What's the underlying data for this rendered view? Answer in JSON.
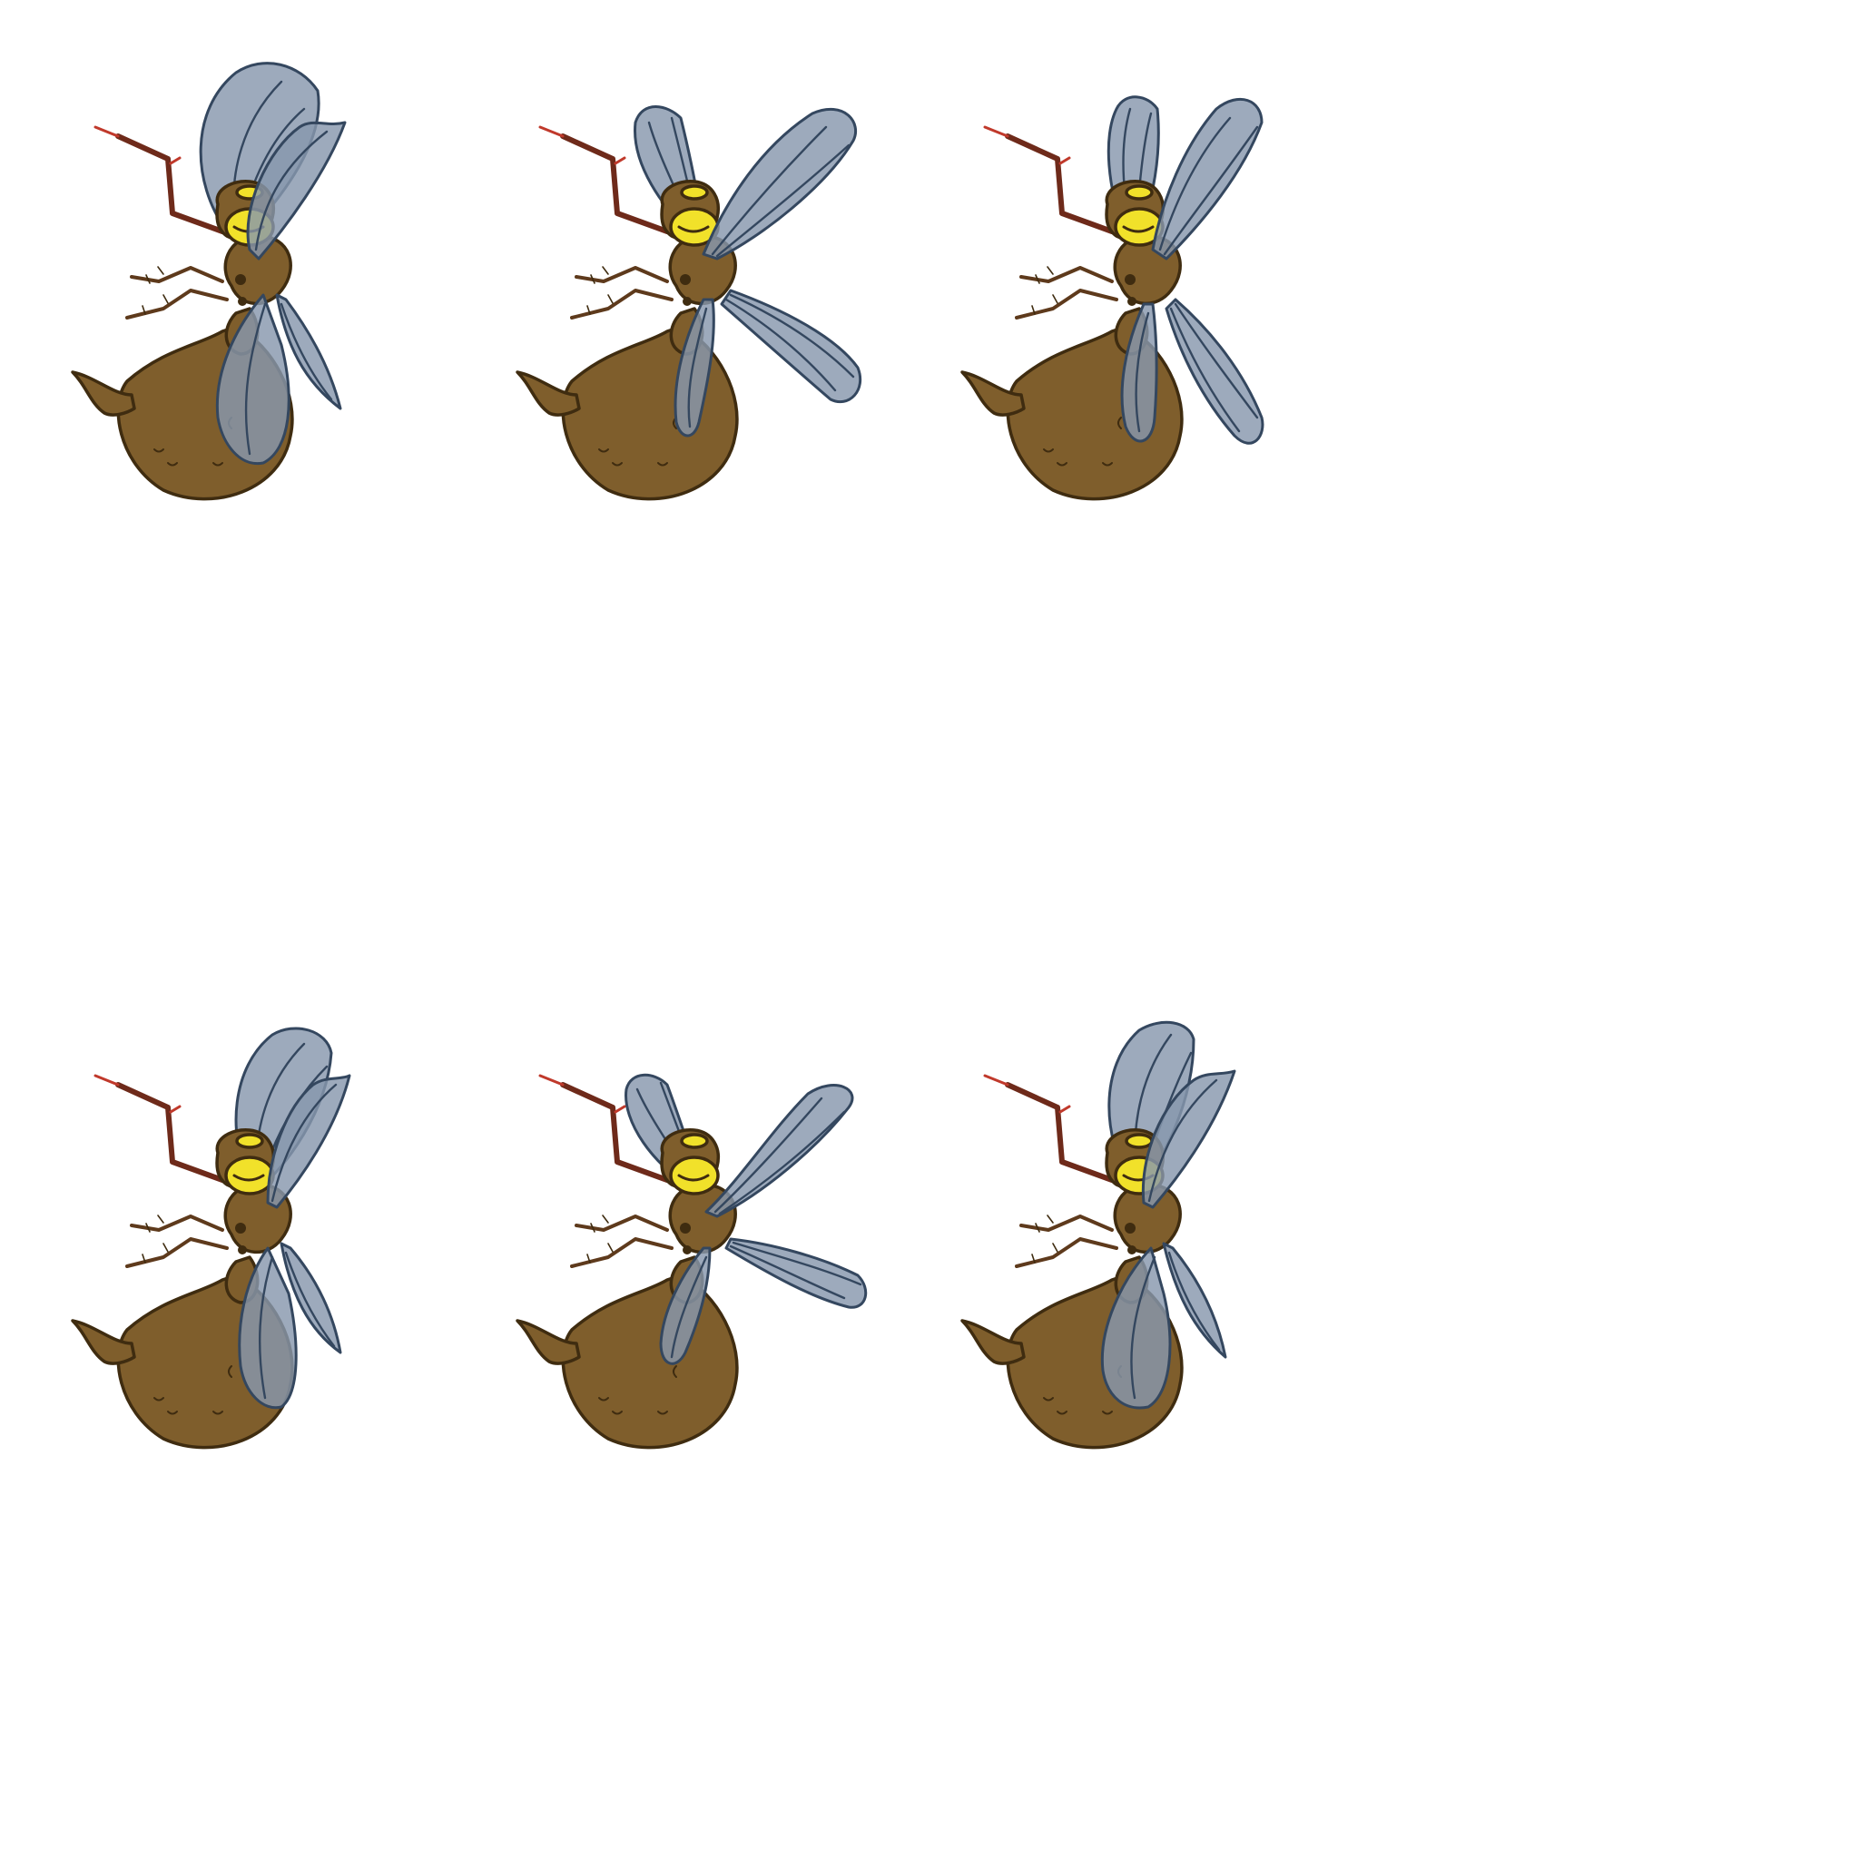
{
  "sprite_sheet": {
    "background_color": "#ffffff",
    "character": "mosquito",
    "animation": "wing-flap",
    "frame_count": 6,
    "colors": {
      "body": "#7f5e2c",
      "outline": "#3f2c10",
      "wing": "#8797ad",
      "wing_outline": "#34475f",
      "eye": "#f1e12a",
      "proboscis": "#6e2a1a",
      "leg": "#5e3a1c"
    },
    "frames": [
      {
        "index": 1,
        "wing_pose": "up-folded"
      },
      {
        "index": 2,
        "wing_pose": "spread-wide"
      },
      {
        "index": 3,
        "wing_pose": "vertical-split"
      },
      {
        "index": 4,
        "wing_pose": "up-folded"
      },
      {
        "index": 5,
        "wing_pose": "spread-wide"
      },
      {
        "index": 6,
        "wing_pose": "up-folded"
      }
    ]
  }
}
